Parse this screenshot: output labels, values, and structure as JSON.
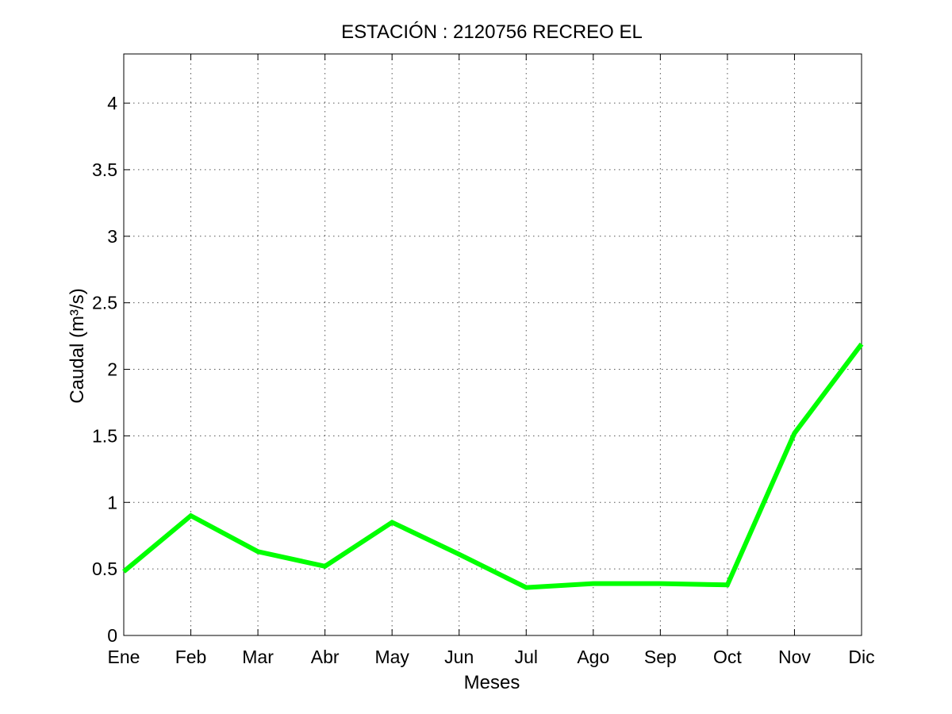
{
  "chart_data": {
    "type": "line",
    "title": "ESTACIÓN :  2120756  RECREO EL",
    "xlabel": "Meses",
    "ylabel": "Caudal (m³/s)",
    "categories": [
      "Ene",
      "Feb",
      "Mar",
      "Abr",
      "May",
      "Jun",
      "Jul",
      "Ago",
      "Sep",
      "Oct",
      "Nov",
      "Dic"
    ],
    "yticks": [
      "0",
      "0.5",
      "1",
      "1.5",
      "2",
      "2.5",
      "3",
      "3.5",
      "4"
    ],
    "ylim": [
      0,
      4.37
    ],
    "grid": true,
    "series": [
      {
        "values": [
          0.48,
          0.9,
          0.63,
          0.52,
          0.85,
          0.61,
          0.36,
          0.39,
          0.39,
          0.38,
          1.52,
          2.19
        ],
        "color": "#00ff00"
      }
    ]
  }
}
